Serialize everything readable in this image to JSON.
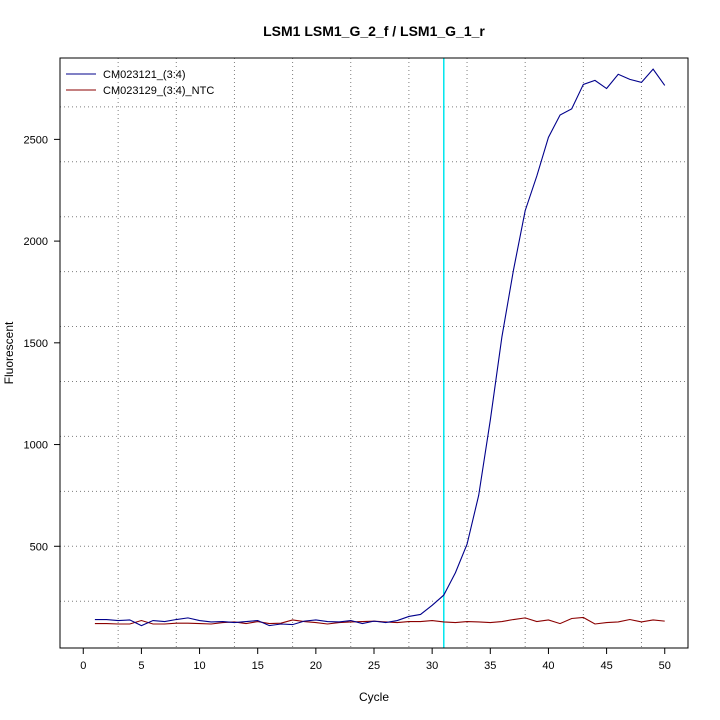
{
  "chart_data": {
    "type": "line",
    "title": "LSM1  LSM1_G_2_f / LSM1_G_1_r",
    "xlabel": "Cycle",
    "ylabel": "Fluorescent",
    "xlim": [
      -2,
      52
    ],
    "ylim": [
      0,
      2900
    ],
    "xticks": [
      0,
      5,
      10,
      15,
      20,
      25,
      30,
      35,
      40,
      45,
      50
    ],
    "yticks": [
      500,
      1000,
      1500,
      2000,
      2500
    ],
    "grid": true,
    "grid_style": "dotted",
    "legend_position": "top-left",
    "threshold_cycle": 31,
    "threshold_color": "#00e5ee",
    "x": [
      1,
      2,
      3,
      4,
      5,
      6,
      7,
      8,
      9,
      10,
      11,
      12,
      13,
      14,
      15,
      16,
      17,
      18,
      19,
      20,
      21,
      22,
      23,
      24,
      25,
      26,
      27,
      28,
      29,
      30,
      31,
      32,
      33,
      34,
      35,
      36,
      37,
      38,
      39,
      40,
      41,
      42,
      43,
      44,
      45,
      46,
      47,
      48,
      49,
      50
    ],
    "series": [
      {
        "name": "CM023121_(3:4)",
        "color": "#00008b",
        "values": [
          140,
          140,
          135,
          138,
          110,
          135,
          130,
          140,
          148,
          135,
          128,
          130,
          125,
          130,
          135,
          110,
          118,
          115,
          132,
          138,
          130,
          128,
          135,
          120,
          132,
          125,
          135,
          155,
          165,
          210,
          260,
          370,
          510,
          750,
          1120,
          1530,
          1860,
          2150,
          2320,
          2510,
          2620,
          2650,
          2770,
          2790,
          2750,
          2820,
          2795,
          2780,
          2845,
          2765
        ]
      },
      {
        "name": "CM023129_(3:4)_NTC",
        "color": "#8b0000",
        "values": [
          120,
          120,
          118,
          118,
          135,
          118,
          118,
          122,
          122,
          120,
          118,
          125,
          128,
          120,
          130,
          120,
          122,
          138,
          130,
          125,
          118,
          125,
          128,
          130,
          132,
          128,
          125,
          130,
          130,
          135,
          128,
          125,
          130,
          128,
          125,
          130,
          140,
          148,
          130,
          138,
          120,
          145,
          150,
          118,
          125,
          128,
          140,
          128,
          138,
          132
        ]
      }
    ]
  }
}
